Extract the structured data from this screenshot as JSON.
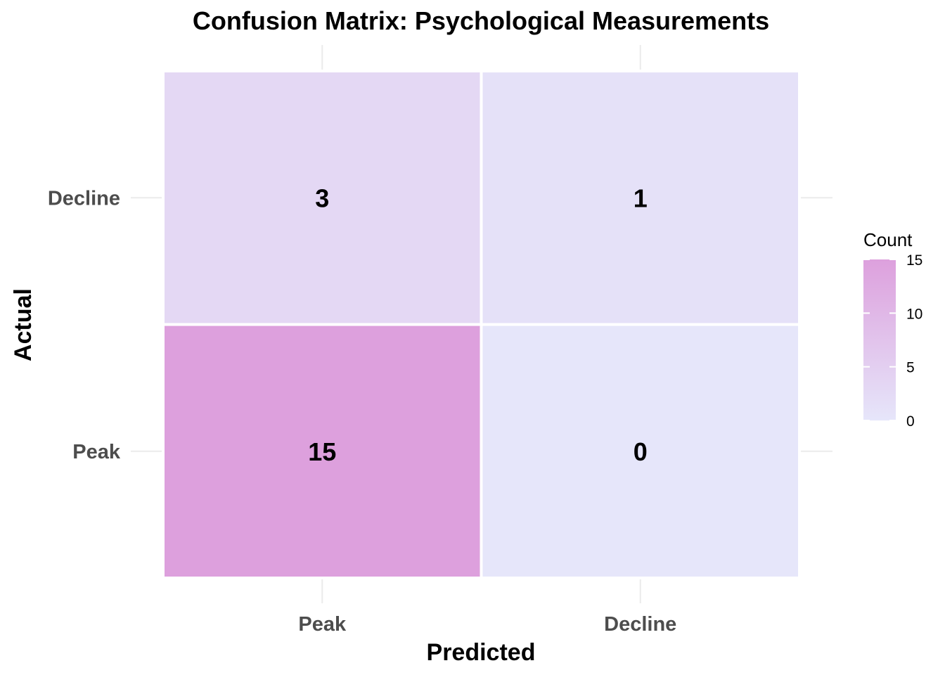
{
  "chart_data": {
    "type": "heatmap",
    "title": "Confusion Matrix: Psychological Measurements",
    "xlabel": "Predicted",
    "ylabel": "Actual",
    "x_categories": [
      "Peak",
      "Decline"
    ],
    "y_categories": [
      "Peak",
      "Decline"
    ],
    "cells": [
      {
        "actual": "Decline",
        "predicted": "Peak",
        "value": 3
      },
      {
        "actual": "Decline",
        "predicted": "Decline",
        "value": 1
      },
      {
        "actual": "Peak",
        "predicted": "Peak",
        "value": 15
      },
      {
        "actual": "Peak",
        "predicted": "Decline",
        "value": 0
      }
    ],
    "legend": {
      "title": "Count",
      "ticks": [
        0,
        5,
        10,
        15
      ],
      "range": [
        0,
        15
      ],
      "placement": "right"
    },
    "colors": {
      "low": "#e6e6fa",
      "high": "#dda0dd",
      "grid": "#ebebeb",
      "cell_border": "#ffffff"
    },
    "grid": true
  }
}
